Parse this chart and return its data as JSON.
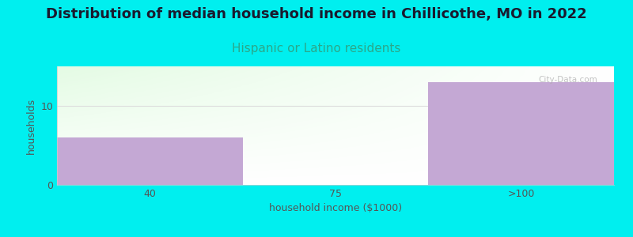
{
  "title": "Distribution of median household income in Chillicothe, MO in 2022",
  "subtitle": "Hispanic or Latino residents",
  "xlabel": "household income ($1000)",
  "ylabel": "households",
  "categories": [
    "40",
    "75",
    ">100"
  ],
  "values": [
    6,
    0,
    13
  ],
  "bar_color": "#c4a8d4",
  "background_color": "#00EFEF",
  "plot_bg_top": "#f5f5ff",
  "plot_bg_bottom_left": "#d8f0d8",
  "title_color": "#1a1a2e",
  "subtitle_color": "#2aa88a",
  "axis_label_color": "#555555",
  "tick_color": "#555555",
  "yticks": [
    0,
    10
  ],
  "ylim": [
    0,
    15
  ],
  "watermark": "City-Data.com",
  "title_fontsize": 13,
  "subtitle_fontsize": 11,
  "label_fontsize": 9,
  "gridline_color": "#dddddd"
}
